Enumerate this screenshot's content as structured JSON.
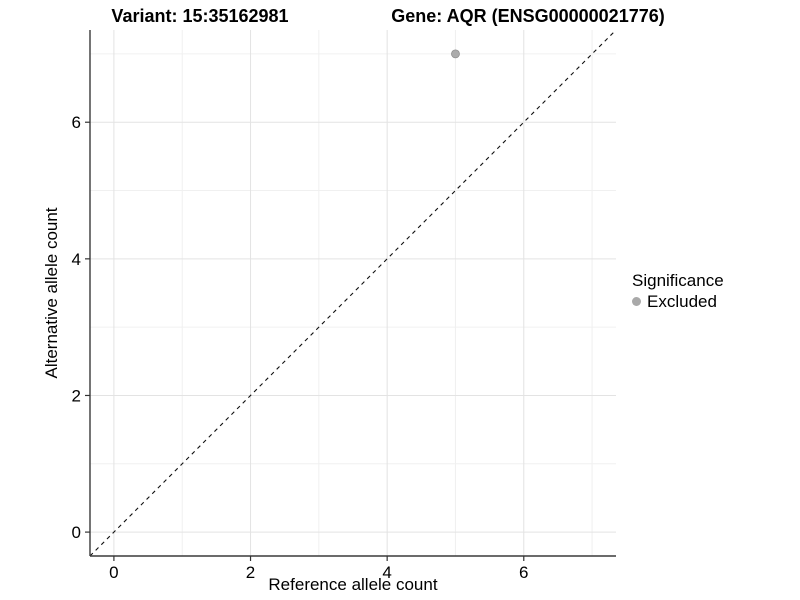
{
  "chart_data": {
    "type": "scatter",
    "titles": [
      "Variant: 15:35162981",
      "Gene: AQR (ENSG00000021776)"
    ],
    "xlabel": "Reference allele count",
    "ylabel": "Alternative allele count",
    "xlim": [
      -0.35,
      7.35
    ],
    "ylim": [
      -0.35,
      7.35
    ],
    "x_ticks": [
      0,
      2,
      4,
      6
    ],
    "y_ticks": [
      0,
      2,
      4,
      6
    ],
    "x_minor_ticks": [
      1,
      3,
      5,
      7
    ],
    "y_minor_ticks": [
      1,
      3,
      5,
      7
    ],
    "grid": "major and minor gridlines on white panel",
    "reference_line": {
      "kind": "identity y=x",
      "style": "dashed",
      "color": "#111111"
    },
    "series": [
      {
        "name": "Excluded",
        "color": "#a9a9a9",
        "marker": "circle",
        "points": [
          {
            "x": 5,
            "y": 7
          }
        ]
      }
    ],
    "legend": {
      "position": "right",
      "title": "Significance",
      "entries": [
        {
          "label": "Excluded",
          "color": "#a9a9a9",
          "marker": "circle"
        }
      ]
    }
  },
  "style_colors": {
    "background": "#ffffff",
    "grid_major": "#e3e3e3",
    "grid_minor": "#f0f0f0",
    "axis_line": "#3a3a3a",
    "tick_mark": "#333333",
    "point_fill": "#ababab",
    "point_stroke": "#8f8f8f",
    "text": "#000000"
  }
}
